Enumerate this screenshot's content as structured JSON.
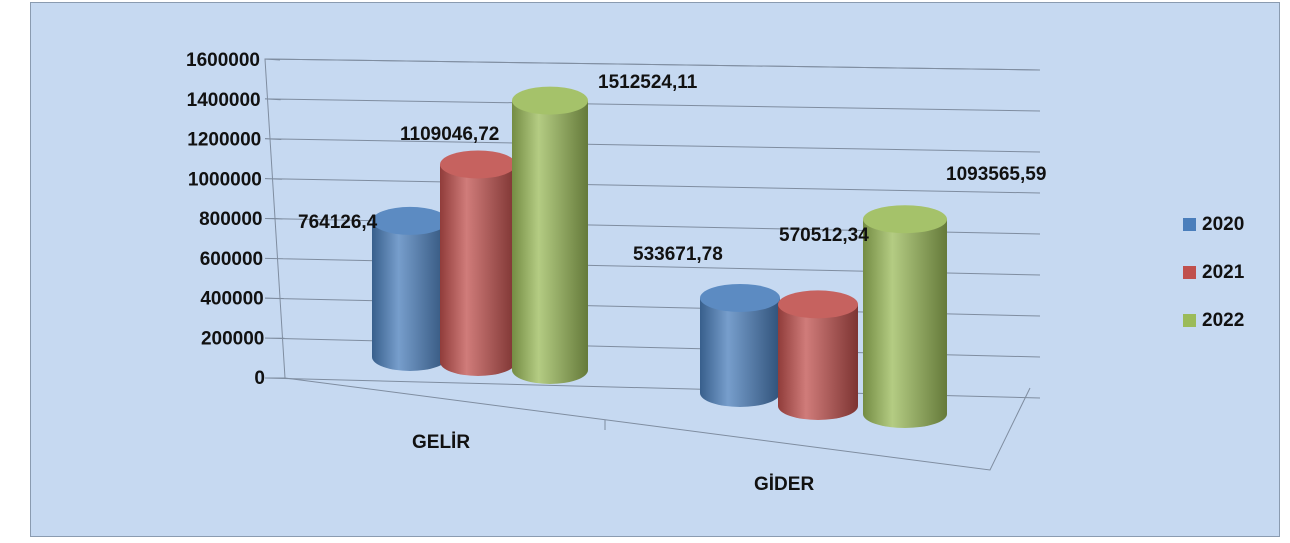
{
  "chart_data": {
    "type": "bar",
    "style": "3d-cylinder",
    "categories": [
      "GELİR",
      "GİDER"
    ],
    "series": [
      {
        "name": "2020",
        "values": [
          764126.4,
          533671.78
        ],
        "labels": [
          "764126,4",
          "533671,78"
        ],
        "color": "#4a7ebb"
      },
      {
        "name": "2021",
        "values": [
          1109046.72,
          570512.34
        ],
        "labels": [
          "1109046,72",
          "570512,34"
        ],
        "color": "#c0504d"
      },
      {
        "name": "2022",
        "values": [
          1512524.11,
          1093565.59
        ],
        "labels": [
          "1512524,11",
          "1093565,59"
        ],
        "color": "#9bbb59"
      }
    ],
    "y_ticks": [
      "0",
      "200000",
      "400000",
      "600000",
      "800000",
      "1000000",
      "1200000",
      "1400000",
      "1600000"
    ],
    "ylim": [
      0,
      1600000
    ],
    "grid": true,
    "legend_position": "right",
    "title": "",
    "xlabel": "",
    "ylabel": ""
  }
}
